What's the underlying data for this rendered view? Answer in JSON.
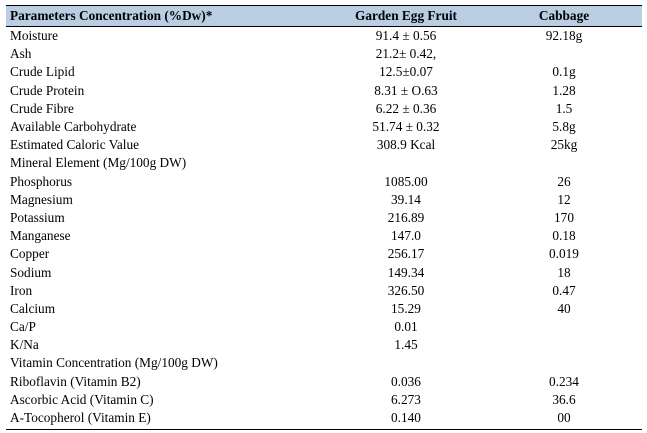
{
  "table": {
    "headers": [
      "Parameters Concentration (%Dw)*",
      "Garden Egg Fruit",
      "Cabbage"
    ],
    "rows": [
      [
        "Moisture",
        "91.4 ± 0.56",
        "92.18g"
      ],
      [
        "Ash",
        "21.2± 0.42,",
        ""
      ],
      [
        "Crude Lipid",
        "12.5±0.07",
        "0.1g"
      ],
      [
        "Crude Protein",
        "8.31 ± O.63",
        "1.28"
      ],
      [
        "Crude Fibre",
        "6.22 ± 0.36",
        "1.5"
      ],
      [
        "Available Carbohydrate",
        "51.74 ± 0.32",
        "5.8g"
      ],
      [
        "Estimated Caloric Value",
        "308.9 Kcal",
        "25kg"
      ],
      [
        "Mineral Element (Mg/100g DW)",
        "",
        ""
      ],
      [
        "Phosphorus",
        "1085.00",
        "26"
      ],
      [
        "Magnesium",
        "39.14",
        "12"
      ],
      [
        "Potassium",
        "216.89",
        "170"
      ],
      [
        "Manganese",
        "147.0",
        "0.18"
      ],
      [
        "Copper",
        "256.17",
        "0.019"
      ],
      [
        "Sodium",
        "149.34",
        "18"
      ],
      [
        "Iron",
        "326.50",
        "0.47"
      ],
      [
        "Calcium",
        "15.29",
        "40"
      ],
      [
        "Ca/P",
        "0.01",
        ""
      ],
      [
        "K/Na",
        "1.45",
        ""
      ],
      [
        "Vitamin Concentration (Mg/100g DW)",
        "",
        ""
      ],
      [
        "Riboflavin (Vitamin B2)",
        "0.036",
        "0.234"
      ],
      [
        "Ascorbic Acid (Vitamin C)",
        "6.273",
        "36.6"
      ],
      [
        "A-Tocopherol (Vitamin E)",
        "0.140",
        "00"
      ]
    ]
  }
}
